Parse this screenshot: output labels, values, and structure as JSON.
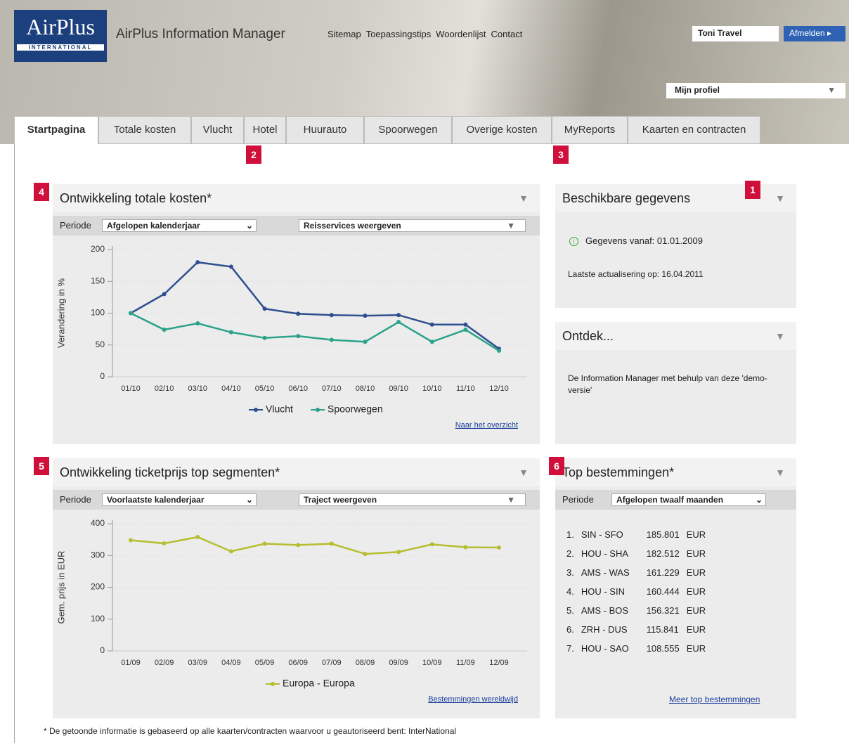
{
  "header": {
    "logo": "AirPlus",
    "logo_sub": "INTERNATIONAL",
    "app_title": "AirPlus Information Manager",
    "nav": [
      "Sitemap",
      "Toepassingstips",
      "Woordenlijst",
      "Contact"
    ],
    "user": "Toni Travel",
    "logout": "Afmelden",
    "profile": "Mijn profiel"
  },
  "tabs": [
    "Startpagina",
    "Totale kosten",
    "Vlucht",
    "Hotel",
    "Huurauto",
    "Spoorwegen",
    "Overige kosten",
    "MyReports",
    "Kaarten en contracten"
  ],
  "badges": [
    "1",
    "2",
    "3",
    "4",
    "5",
    "6"
  ],
  "cost_panel": {
    "title": "Ontwikkeling totale kosten*",
    "period_label": "Periode",
    "period": "Afgelopen kalenderjaar",
    "filter": "Reisservices weergeven",
    "link": "Naar het overzicht"
  },
  "cost_chart": {
    "type": "line",
    "y_label": "Verandering in %",
    "categories": [
      "01/10",
      "02/10",
      "03/10",
      "04/10",
      "05/10",
      "06/10",
      "07/10",
      "08/10",
      "09/10",
      "10/10",
      "11/10",
      "12/10"
    ],
    "series": [
      {
        "name": "Vlucht",
        "color": "#2e4f8f",
        "values": [
          100,
          130,
          180,
          173,
          107,
          99,
          97,
          96,
          97,
          82,
          82,
          44
        ]
      },
      {
        "name": "Spoorwegen",
        "color": "#2aa28a",
        "values": [
          100,
          74,
          84,
          70,
          61,
          64,
          58,
          55,
          86,
          55,
          74,
          41
        ]
      }
    ],
    "ylim": [
      0,
      200
    ],
    "yticks": [
      0,
      50,
      100,
      150,
      200
    ],
    "grid": true
  },
  "ticket_panel": {
    "title": "Ontwikkeling ticketprijs top segmenten*",
    "period_label": "Periode",
    "period": "Voorlaatste kalenderjaar",
    "filter": "Traject weergeven",
    "link": "Bestemmingen wereldwijd"
  },
  "ticket_chart": {
    "type": "line",
    "y_label": "Gem. prijs in EUR",
    "categories": [
      "01/09",
      "02/09",
      "03/09",
      "04/09",
      "05/09",
      "06/09",
      "07/09",
      "08/09",
      "09/09",
      "10/09",
      "11/09",
      "12/09"
    ],
    "series": [
      {
        "name": "Europa - Europa",
        "color": "#b5be2e",
        "values": [
          348,
          338,
          358,
          313,
          337,
          333,
          337,
          305,
          311,
          335,
          326,
          325
        ]
      }
    ],
    "ylim": [
      0,
      400
    ],
    "yticks": [
      0,
      100,
      200,
      300,
      400
    ],
    "grid": true
  },
  "data_panel": {
    "title": "Beschikbare gegevens",
    "since": "Gegevens vanaf: 01.01.2009",
    "updated": "Laatste actualisering op: 16.04.2011"
  },
  "discover_panel": {
    "title": "Ontdek...",
    "text": "De Information Manager met behulp van deze 'demo-versie'"
  },
  "top_panel": {
    "title": "Top bestemmingen*",
    "period_label": "Periode",
    "period": "Afgelopen twaalf maanden",
    "link": "Meer top bestemmingen",
    "rows": [
      [
        "1.",
        "SIN - SFO",
        "185.801",
        "EUR"
      ],
      [
        "2.",
        "HOU - SHA",
        "182.512",
        "EUR"
      ],
      [
        "3.",
        "AMS - WAS",
        "161.229",
        "EUR"
      ],
      [
        "4.",
        "HOU - SIN",
        "160.444",
        "EUR"
      ],
      [
        "5.",
        "AMS - BOS",
        "156.321",
        "EUR"
      ],
      [
        "6.",
        "ZRH - DUS",
        "115.841",
        "EUR"
      ],
      [
        "7.",
        "HOU - SAO",
        "108.555",
        "EUR"
      ]
    ]
  },
  "footnote": "* De getoonde informatie is gebaseerd op alle kaarten/contracten waarvoor u geautoriseerd bent: InterNational"
}
